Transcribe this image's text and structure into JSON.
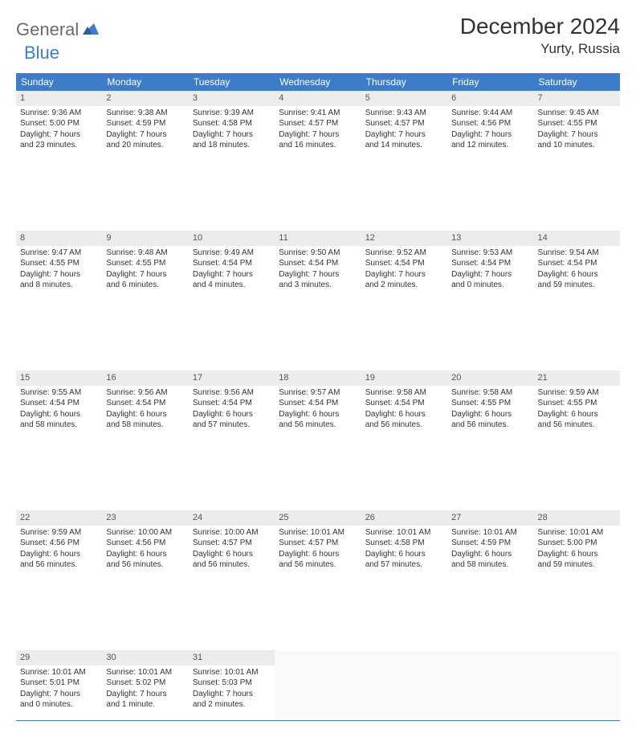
{
  "brand": {
    "part1": "General",
    "part2": "Blue"
  },
  "title": "December 2024",
  "location": "Yurty, Russia",
  "colors": {
    "header_bg": "#3d7cc9",
    "header_text": "#ffffff",
    "daynum_bg": "#ececec",
    "rule": "#3d7cc9",
    "body_text": "#333333",
    "logo_gray": "#6b6b6b",
    "logo_blue": "#3d7cc9"
  },
  "weekdays": [
    "Sunday",
    "Monday",
    "Tuesday",
    "Wednesday",
    "Thursday",
    "Friday",
    "Saturday"
  ],
  "weeks": [
    [
      {
        "n": "1",
        "rise": "Sunrise: 9:36 AM",
        "set": "Sunset: 5:00 PM",
        "dl1": "Daylight: 7 hours",
        "dl2": "and 23 minutes."
      },
      {
        "n": "2",
        "rise": "Sunrise: 9:38 AM",
        "set": "Sunset: 4:59 PM",
        "dl1": "Daylight: 7 hours",
        "dl2": "and 20 minutes."
      },
      {
        "n": "3",
        "rise": "Sunrise: 9:39 AM",
        "set": "Sunset: 4:58 PM",
        "dl1": "Daylight: 7 hours",
        "dl2": "and 18 minutes."
      },
      {
        "n": "4",
        "rise": "Sunrise: 9:41 AM",
        "set": "Sunset: 4:57 PM",
        "dl1": "Daylight: 7 hours",
        "dl2": "and 16 minutes."
      },
      {
        "n": "5",
        "rise": "Sunrise: 9:43 AM",
        "set": "Sunset: 4:57 PM",
        "dl1": "Daylight: 7 hours",
        "dl2": "and 14 minutes."
      },
      {
        "n": "6",
        "rise": "Sunrise: 9:44 AM",
        "set": "Sunset: 4:56 PM",
        "dl1": "Daylight: 7 hours",
        "dl2": "and 12 minutes."
      },
      {
        "n": "7",
        "rise": "Sunrise: 9:45 AM",
        "set": "Sunset: 4:55 PM",
        "dl1": "Daylight: 7 hours",
        "dl2": "and 10 minutes."
      }
    ],
    [
      {
        "n": "8",
        "rise": "Sunrise: 9:47 AM",
        "set": "Sunset: 4:55 PM",
        "dl1": "Daylight: 7 hours",
        "dl2": "and 8 minutes."
      },
      {
        "n": "9",
        "rise": "Sunrise: 9:48 AM",
        "set": "Sunset: 4:55 PM",
        "dl1": "Daylight: 7 hours",
        "dl2": "and 6 minutes."
      },
      {
        "n": "10",
        "rise": "Sunrise: 9:49 AM",
        "set": "Sunset: 4:54 PM",
        "dl1": "Daylight: 7 hours",
        "dl2": "and 4 minutes."
      },
      {
        "n": "11",
        "rise": "Sunrise: 9:50 AM",
        "set": "Sunset: 4:54 PM",
        "dl1": "Daylight: 7 hours",
        "dl2": "and 3 minutes."
      },
      {
        "n": "12",
        "rise": "Sunrise: 9:52 AM",
        "set": "Sunset: 4:54 PM",
        "dl1": "Daylight: 7 hours",
        "dl2": "and 2 minutes."
      },
      {
        "n": "13",
        "rise": "Sunrise: 9:53 AM",
        "set": "Sunset: 4:54 PM",
        "dl1": "Daylight: 7 hours",
        "dl2": "and 0 minutes."
      },
      {
        "n": "14",
        "rise": "Sunrise: 9:54 AM",
        "set": "Sunset: 4:54 PM",
        "dl1": "Daylight: 6 hours",
        "dl2": "and 59 minutes."
      }
    ],
    [
      {
        "n": "15",
        "rise": "Sunrise: 9:55 AM",
        "set": "Sunset: 4:54 PM",
        "dl1": "Daylight: 6 hours",
        "dl2": "and 58 minutes."
      },
      {
        "n": "16",
        "rise": "Sunrise: 9:56 AM",
        "set": "Sunset: 4:54 PM",
        "dl1": "Daylight: 6 hours",
        "dl2": "and 58 minutes."
      },
      {
        "n": "17",
        "rise": "Sunrise: 9:56 AM",
        "set": "Sunset: 4:54 PM",
        "dl1": "Daylight: 6 hours",
        "dl2": "and 57 minutes."
      },
      {
        "n": "18",
        "rise": "Sunrise: 9:57 AM",
        "set": "Sunset: 4:54 PM",
        "dl1": "Daylight: 6 hours",
        "dl2": "and 56 minutes."
      },
      {
        "n": "19",
        "rise": "Sunrise: 9:58 AM",
        "set": "Sunset: 4:54 PM",
        "dl1": "Daylight: 6 hours",
        "dl2": "and 56 minutes."
      },
      {
        "n": "20",
        "rise": "Sunrise: 9:58 AM",
        "set": "Sunset: 4:55 PM",
        "dl1": "Daylight: 6 hours",
        "dl2": "and 56 minutes."
      },
      {
        "n": "21",
        "rise": "Sunrise: 9:59 AM",
        "set": "Sunset: 4:55 PM",
        "dl1": "Daylight: 6 hours",
        "dl2": "and 56 minutes."
      }
    ],
    [
      {
        "n": "22",
        "rise": "Sunrise: 9:59 AM",
        "set": "Sunset: 4:56 PM",
        "dl1": "Daylight: 6 hours",
        "dl2": "and 56 minutes."
      },
      {
        "n": "23",
        "rise": "Sunrise: 10:00 AM",
        "set": "Sunset: 4:56 PM",
        "dl1": "Daylight: 6 hours",
        "dl2": "and 56 minutes."
      },
      {
        "n": "24",
        "rise": "Sunrise: 10:00 AM",
        "set": "Sunset: 4:57 PM",
        "dl1": "Daylight: 6 hours",
        "dl2": "and 56 minutes."
      },
      {
        "n": "25",
        "rise": "Sunrise: 10:01 AM",
        "set": "Sunset: 4:57 PM",
        "dl1": "Daylight: 6 hours",
        "dl2": "and 56 minutes."
      },
      {
        "n": "26",
        "rise": "Sunrise: 10:01 AM",
        "set": "Sunset: 4:58 PM",
        "dl1": "Daylight: 6 hours",
        "dl2": "and 57 minutes."
      },
      {
        "n": "27",
        "rise": "Sunrise: 10:01 AM",
        "set": "Sunset: 4:59 PM",
        "dl1": "Daylight: 6 hours",
        "dl2": "and 58 minutes."
      },
      {
        "n": "28",
        "rise": "Sunrise: 10:01 AM",
        "set": "Sunset: 5:00 PM",
        "dl1": "Daylight: 6 hours",
        "dl2": "and 59 minutes."
      }
    ],
    [
      {
        "n": "29",
        "rise": "Sunrise: 10:01 AM",
        "set": "Sunset: 5:01 PM",
        "dl1": "Daylight: 7 hours",
        "dl2": "and 0 minutes."
      },
      {
        "n": "30",
        "rise": "Sunrise: 10:01 AM",
        "set": "Sunset: 5:02 PM",
        "dl1": "Daylight: 7 hours",
        "dl2": "and 1 minute."
      },
      {
        "n": "31",
        "rise": "Sunrise: 10:01 AM",
        "set": "Sunset: 5:03 PM",
        "dl1": "Daylight: 7 hours",
        "dl2": "and 2 minutes."
      },
      {
        "empty": true
      },
      {
        "empty": true
      },
      {
        "empty": true
      },
      {
        "empty": true
      }
    ]
  ]
}
